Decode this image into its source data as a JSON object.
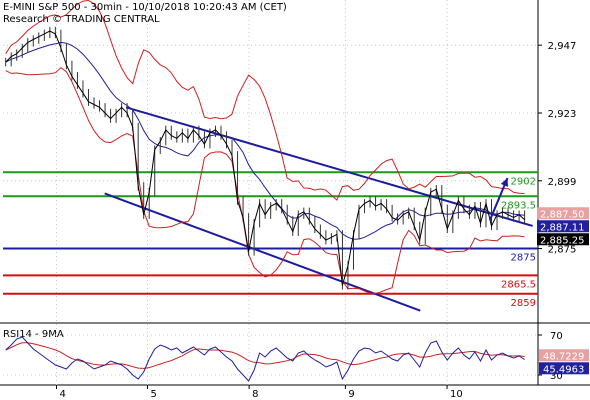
{
  "header": {
    "line1": "E-MINI S&P 500 - 30min - 10/10/2018 10:20:43 AM (CET)",
    "line2": "Research © TRADING CENTRAL"
  },
  "chart_data": {
    "type": "candlestick",
    "price_ticks": [
      "2,947",
      "2,923",
      "2,899",
      "2,875"
    ],
    "price_tick_values": [
      2947,
      2923,
      2899,
      2875
    ],
    "ylim": [
      2849,
      2963
    ],
    "rsi_label": "RSI14 - 9MA",
    "rsi_ticks": [
      "70",
      "30"
    ],
    "rsi_tick_values": [
      70,
      30
    ],
    "rsi_ylim": [
      20,
      80
    ],
    "x_ticks": [
      "4",
      "5",
      "8",
      "9",
      "10"
    ],
    "x_tick_values": [
      10,
      27,
      46,
      64,
      83
    ],
    "xlim": [
      0,
      100
    ],
    "levels": [
      {
        "label": "2902",
        "value": 2902,
        "color": "#1a9a1a"
      },
      {
        "label": "2893.5",
        "value": 2893.5,
        "color": "#1a9a1a"
      },
      {
        "label": "2875",
        "value": 2875,
        "color": "#1c1ca0"
      },
      {
        "label": "2865.5",
        "value": 2865.5,
        "color": "#d01010"
      },
      {
        "label": "2859",
        "value": 2859,
        "color": "#d01010"
      }
    ],
    "price_badges": [
      {
        "label": "2,887.50",
        "value": 2887.5,
        "bg": "#e8a0a0",
        "fg": "#fff"
      },
      {
        "label": "2,887.11",
        "value": 2887.11,
        "bg": "#2020a0",
        "fg": "#fff"
      },
      {
        "label": "2,885.25",
        "value": 2885.25,
        "bg": "#000000",
        "fg": "#fff"
      }
    ],
    "rsi_badges": [
      {
        "label": "48.7229",
        "value": 48.7229,
        "bg": "#e8a0a0",
        "fg": "#fff"
      },
      {
        "label": "45.4963",
        "value": 45.4963,
        "bg": "#2020a0",
        "fg": "#fff"
      }
    ],
    "channel": {
      "upper": [
        [
          23,
          2925
        ],
        [
          99,
          2883
        ]
      ],
      "lower": [
        [
          19,
          2894.5
        ],
        [
          78,
          2853
        ]
      ],
      "color": "#1c1ca0"
    },
    "arrow": {
      "from": [
        91,
        2885
      ],
      "to": [
        94.3,
        2900
      ],
      "color": "#1c1ca0"
    },
    "close": [
      2941,
      2943,
      2944,
      2946,
      2948,
      2949,
      2950,
      2951,
      2952,
      2951,
      2946,
      2940,
      2936,
      2933,
      2930,
      2927,
      2926,
      2925,
      2923,
      2921,
      2923,
      2925,
      2923,
      2918,
      2897,
      2887,
      2895,
      2910,
      2913,
      2917,
      2915,
      2914,
      2916,
      2914,
      2917,
      2915,
      2912,
      2916,
      2917,
      2915,
      2912,
      2908,
      2892,
      2886,
      2874,
      2884,
      2891,
      2887,
      2890,
      2891,
      2889,
      2885,
      2881,
      2887,
      2888,
      2885,
      2882,
      2880,
      2878,
      2879,
      2880,
      2862,
      2869,
      2880,
      2889,
      2891,
      2892,
      2890,
      2891,
      2889,
      2886,
      2885,
      2887,
      2888,
      2883,
      2878,
      2888,
      2895,
      2896,
      2889,
      2882,
      2887,
      2892,
      2889,
      2887,
      2890,
      2884,
      2891,
      2883,
      2887,
      2888,
      2887,
      2886,
      2887,
      2885.25
    ],
    "rsi": [
      55,
      60,
      66,
      68,
      62,
      56,
      52,
      48,
      44,
      40,
      38,
      36,
      42,
      46,
      44,
      40,
      36,
      38,
      40,
      44,
      42,
      40,
      36,
      30,
      26,
      33,
      46,
      56,
      60,
      58,
      55,
      57,
      52,
      55,
      58,
      54,
      50,
      56,
      58,
      53,
      48,
      44,
      36,
      30,
      24,
      35,
      52,
      48,
      54,
      57,
      52,
      47,
      44,
      52,
      54,
      49,
      45,
      42,
      38,
      40,
      43,
      26,
      35,
      46,
      54,
      57,
      56,
      52,
      54,
      50,
      46,
      44,
      50,
      52,
      45,
      38,
      52,
      62,
      64,
      53,
      45,
      52,
      57,
      50,
      46,
      53,
      44,
      55,
      45,
      50,
      52,
      49,
      47,
      49,
      45.5
    ]
  }
}
